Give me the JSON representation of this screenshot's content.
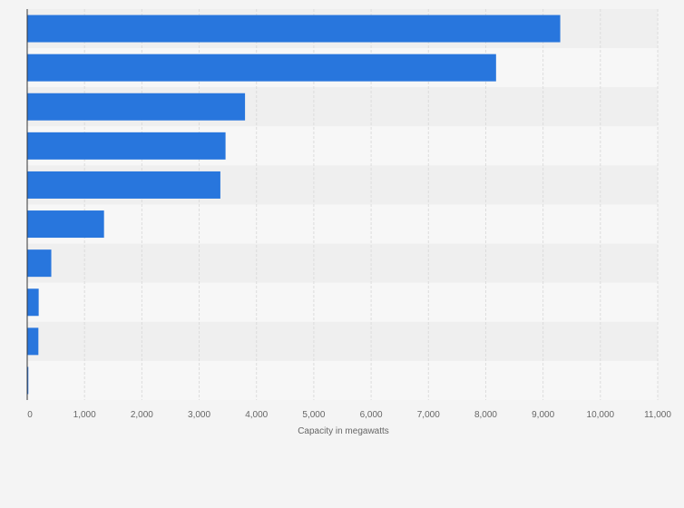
{
  "chart_data": {
    "type": "bar",
    "orientation": "horizontal",
    "title": "",
    "xlabel": "Capacity in megawatts",
    "ylabel": "",
    "categories": [
      "",
      "",
      "",
      "",
      "",
      "",
      "",
      "",
      "",
      ""
    ],
    "values": [
      9300,
      8180,
      3800,
      3460,
      3370,
      1340,
      420,
      200,
      195,
      20
    ],
    "xlim": [
      0,
      11000
    ],
    "xticks": [
      0,
      1000,
      2000,
      3000,
      4000,
      5000,
      6000,
      7000,
      8000,
      9000,
      10000,
      11000
    ],
    "xtick_labels": [
      "0",
      "1,000",
      "2,000",
      "3,000",
      "4,000",
      "5,000",
      "6,000",
      "7,000",
      "8,000",
      "9,000",
      "10,000",
      "11,000"
    ],
    "grid": true,
    "legend": "none",
    "colors": {
      "bar": "#2876dd",
      "band_dark": "#efefef",
      "band_light": "#f7f7f7",
      "grid": "#dcdcdc",
      "axis": "#333333",
      "text": "#666666"
    }
  }
}
